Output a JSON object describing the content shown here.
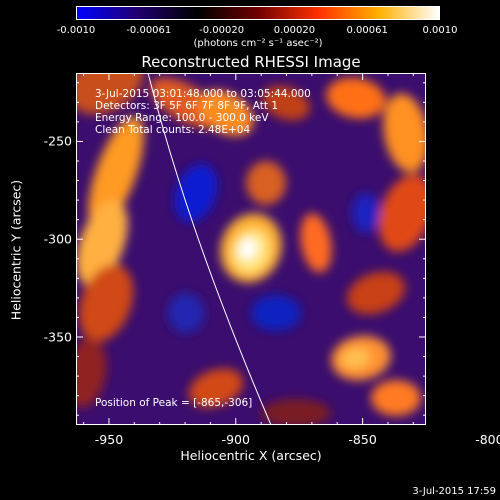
{
  "colorbar": {
    "ticks": [
      "-0.0010",
      "-0.00061",
      "-0.00020",
      "0.00020",
      "0.00061",
      "0.0010"
    ],
    "unit": "(photons cm⁻² s⁻¹ asec⁻²)"
  },
  "chart_data": {
    "type": "heatmap",
    "title": "Reconstructed RHESSI Image",
    "xlabel": "Heliocentric X (arcsec)",
    "ylabel": "Heliocentric Y (arcsec)",
    "xlim": [
      -963,
      -825
    ],
    "ylim": [
      -395,
      -215
    ],
    "xticks": [
      "-950",
      "-900",
      "-850",
      "-800"
    ],
    "yticks": [
      "-250",
      "-300",
      "-350"
    ],
    "xtick_values": [
      -950,
      -900,
      -850,
      -800
    ],
    "ytick_values": [
      -250,
      -300,
      -350
    ],
    "colorscale": [
      "#0000ff",
      "#200070",
      "#000000",
      "#700000",
      "#ff3000",
      "#ffb000",
      "#ffffff"
    ],
    "color_range": [
      -0.001,
      0.001
    ],
    "peak": {
      "x": -865,
      "y": -306
    },
    "info_lines": [
      "3-Jul-2015 03:01:48.000 to 03:05:44.000",
      "Detectors: 3F 5F 6F 7F 8F 9F, Att 1",
      "Energy Range: 100.0 - 300.0 keV",
      "Clean     Total counts: 2.48E+04"
    ],
    "peak_label": "Position of Peak = [-865,-306]"
  },
  "timestamp": "3-Jul-2015 17:59"
}
